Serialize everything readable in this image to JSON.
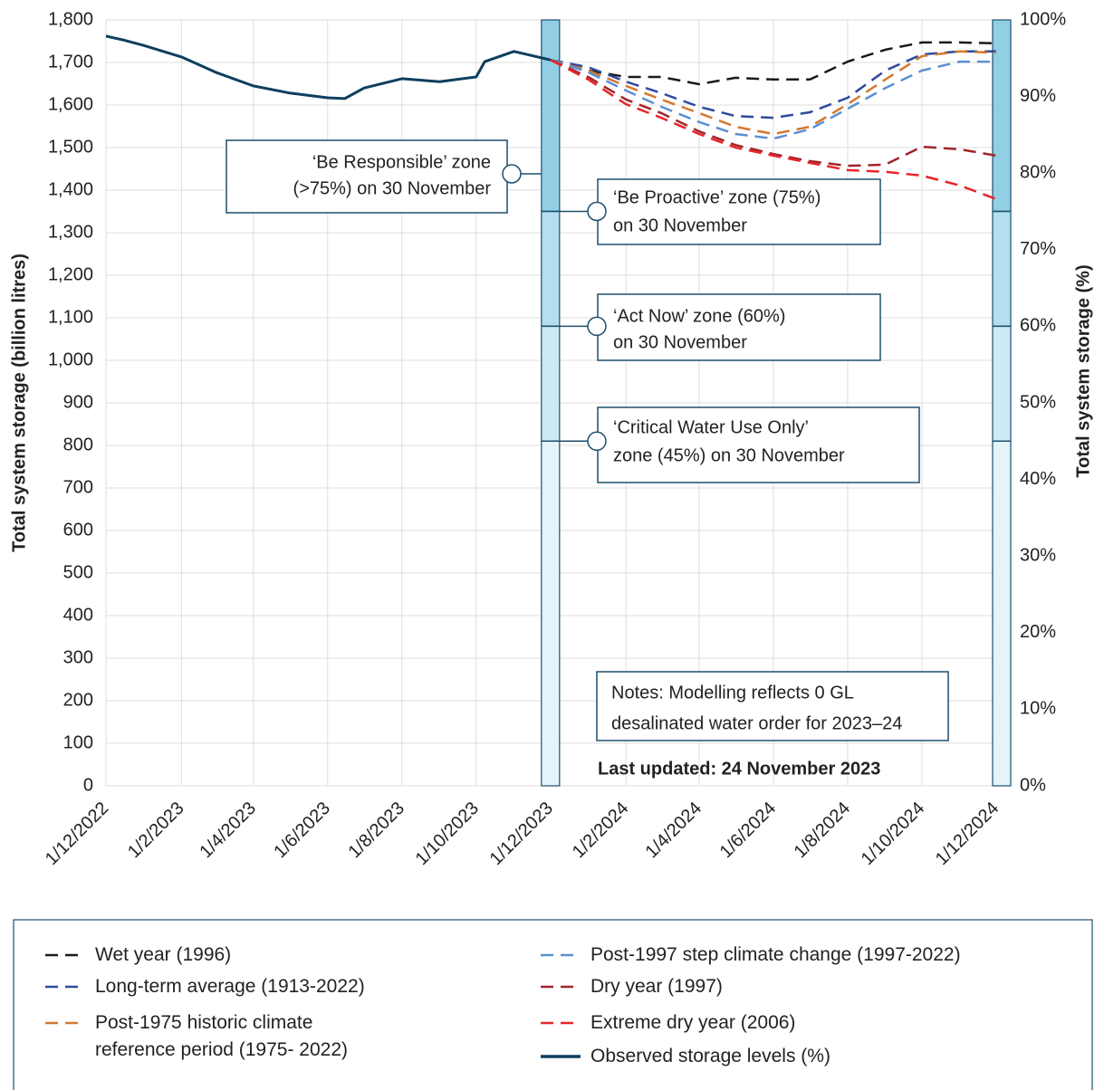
{
  "chart_data": {
    "type": "line",
    "y_axis_label": "Total system storage (billion litres)",
    "y2_axis_label": "Total system storage (%)",
    "xlim": [
      "1/12/2022",
      "1/12/2024"
    ],
    "xticks": [
      "1/12/2022",
      "1/2/2023",
      "1/4/2023",
      "1/6/2023",
      "1/8/2023",
      "1/10/2023",
      "1/12/2023",
      "1/2/2024",
      "1/4/2024",
      "1/6/2024",
      "1/8/2024",
      "1/10/2024",
      "1/12/2024"
    ],
    "ylim": [
      0,
      1800
    ],
    "yticks": [
      0,
      100,
      200,
      300,
      400,
      500,
      600,
      700,
      800,
      900,
      {
        "value": 1000,
        "label": "1,000"
      },
      {
        "value": 1100,
        "label": "1,100"
      },
      {
        "value": 1200,
        "label": "1,200"
      },
      {
        "value": 1300,
        "label": "1,300"
      },
      {
        "value": 1400,
        "label": "1,400"
      },
      {
        "value": 1500,
        "label": "1,500"
      },
      {
        "value": 1600,
        "label": "1,600"
      },
      {
        "value": 1700,
        "label": "1,700"
      },
      {
        "value": 1800,
        "label": "1,800"
      }
    ],
    "y2lim": [
      0,
      100
    ],
    "y2ticks": [
      {
        "value": 0,
        "label": "0%"
      },
      {
        "value": 10,
        "label": "10%"
      },
      {
        "value": 20,
        "label": "20%"
      },
      {
        "value": 30,
        "label": "30%"
      },
      {
        "value": 40,
        "label": "40%"
      },
      {
        "value": 50,
        "label": "50%"
      },
      {
        "value": 60,
        "label": "60%"
      },
      {
        "value": 70,
        "label": "70%"
      },
      {
        "value": 80,
        "label": "80%"
      },
      {
        "value": 90,
        "label": "90%"
      },
      {
        "value": 100,
        "label": "100%"
      }
    ],
    "grid": true,
    "series": [
      {
        "name": "Wet year (1996)",
        "color": "#1a1a1a",
        "dash": true,
        "x": [
          "1/12/2023",
          "1/1/2024",
          "1/2/2024",
          "1/3/2024",
          "1/4/2024",
          "1/5/2024",
          "1/6/2024",
          "1/7/2024",
          "1/8/2024",
          "1/9/2024",
          "1/10/2024",
          "1/11/2024",
          "1/12/2024"
        ],
        "values": [
          1706,
          1681,
          1666,
          1666,
          1649,
          1664,
          1660,
          1660,
          1702,
          1730,
          1747,
          1747,
          1745
        ]
      },
      {
        "name": "Long-term average (1913-2022)",
        "color": "#2e4a9e",
        "dash": true,
        "x": [
          "1/12/2023",
          "1/1/2024",
          "1/2/2024",
          "1/3/2024",
          "1/4/2024",
          "1/5/2024",
          "1/6/2024",
          "1/7/2024",
          "1/8/2024",
          "1/9/2024",
          "1/10/2024",
          "1/11/2024",
          "1/12/2024"
        ],
        "values": [
          1706,
          1689,
          1655,
          1628,
          1596,
          1574,
          1570,
          1583,
          1617,
          1681,
          1719,
          1726,
          1726
        ]
      },
      {
        "name": "Post-1975 historic climate reference period (1975- 2022)",
        "color": "#d4782f",
        "dash": true,
        "x": [
          "1/12/2023",
          "1/1/2024",
          "1/2/2024",
          "1/3/2024",
          "1/4/2024",
          "1/5/2024",
          "1/6/2024",
          "1/7/2024",
          "1/8/2024",
          "1/9/2024",
          "1/10/2024",
          "1/11/2024",
          "1/12/2024"
        ],
        "values": [
          1706,
          1681,
          1645,
          1613,
          1581,
          1549,
          1532,
          1549,
          1602,
          1660,
          1715,
          1726,
          1723
        ]
      },
      {
        "name": "Post-1997 step climate change (1997-2022)",
        "color": "#5b8fd4",
        "dash": true,
        "x": [
          "1/12/2023",
          "1/1/2024",
          "1/2/2024",
          "1/3/2024",
          "1/4/2024",
          "1/5/2024",
          "1/6/2024",
          "1/7/2024",
          "1/8/2024",
          "1/9/2024",
          "1/10/2024",
          "1/11/2024",
          "1/12/2024"
        ],
        "values": [
          1706,
          1677,
          1634,
          1596,
          1560,
          1532,
          1521,
          1543,
          1591,
          1640,
          1681,
          1702,
          1702
        ]
      },
      {
        "name": "Dry year (1997)",
        "color": "#a0252a",
        "dash": true,
        "x": [
          "1/12/2023",
          "1/1/2024",
          "1/2/2024",
          "1/3/2024",
          "1/4/2024",
          "1/5/2024",
          "1/6/2024",
          "1/7/2024",
          "1/8/2024",
          "1/9/2024",
          "1/10/2024",
          "1/11/2024",
          "1/12/2024"
        ],
        "values": [
          1706,
          1666,
          1613,
          1581,
          1538,
          1506,
          1485,
          1468,
          1457,
          1460,
          1502,
          1496,
          1481
        ]
      },
      {
        "name": "Extreme dry year (2006)",
        "color": "#e8252a",
        "dash": true,
        "x": [
          "1/12/2023",
          "1/1/2024",
          "1/2/2024",
          "1/3/2024",
          "1/4/2024",
          "1/5/2024",
          "1/6/2024",
          "1/7/2024",
          "1/8/2024",
          "1/9/2024",
          "1/10/2024",
          "1/11/2024",
          "1/12/2024"
        ],
        "values": [
          1706,
          1660,
          1602,
          1570,
          1532,
          1500,
          1481,
          1464,
          1447,
          1443,
          1434,
          1411,
          1379
        ]
      },
      {
        "name": "Observed storage levels (%)",
        "color": "#0d3f5e",
        "dash": false,
        "x": [
          "1/12/2022",
          "15/12/2022",
          "1/1/2023",
          "1/2/2023",
          "1/3/2023",
          "1/4/2023",
          "1/5/2023",
          "1/6/2023",
          "15/6/2023",
          "1/7/2023",
          "1/8/2023",
          "1/9/2023",
          "1/10/2023",
          "8/10/2023",
          "1/11/2023",
          "1/12/2023"
        ],
        "values": [
          1762,
          1753,
          1740,
          1713,
          1677,
          1645,
          1628,
          1617,
          1615,
          1640,
          1662,
          1655,
          1666,
          1702,
          1726,
          1706
        ]
      }
    ],
    "zones": [
      {
        "label": [
          "‘Be Responsible’ zone",
          "(>75%) on 30 November"
        ],
        "lower": 75,
        "upper": 100,
        "color": "#93cfe4"
      },
      {
        "label": [
          "‘Be Proactive’ zone (75%)",
          "on 30 November"
        ],
        "lower": 60,
        "upper": 75,
        "color": "#b3dff0"
      },
      {
        "label": [
          "‘Act Now’ zone (60%)",
          "on 30 November"
        ],
        "lower": 45,
        "upper": 60,
        "color": "#cde9f5"
      },
      {
        "label": [
          "‘Critical Water Use Only’",
          "zone (45%) on 30 November"
        ],
        "lower": 0,
        "upper": 45,
        "color": "#e4f4fa"
      }
    ],
    "notes": [
      "Notes: Modelling reflects 0 GL",
      "desalinated water order for 2023–24"
    ],
    "last_updated": "Last updated: 24 November 2023"
  }
}
